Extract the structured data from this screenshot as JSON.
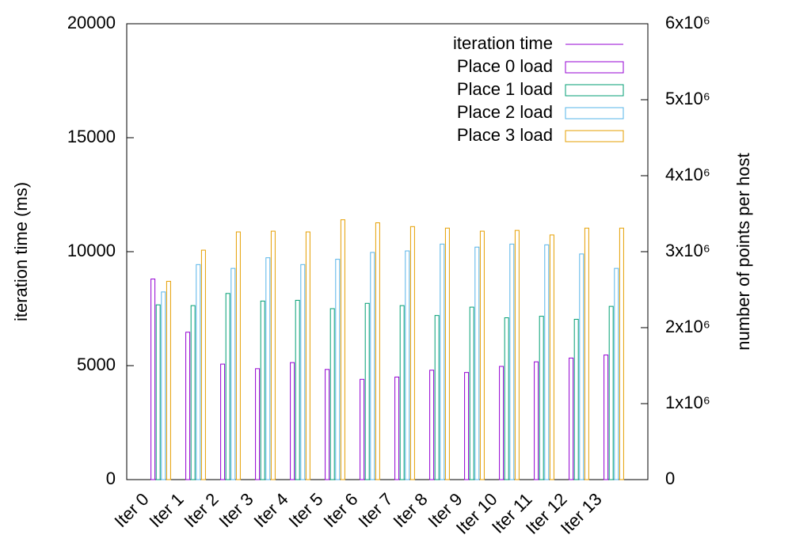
{
  "chart_data": {
    "type": "bar",
    "categories": [
      "Iter 0",
      "Iter 1",
      "Iter 2",
      "Iter 3",
      "Iter 4",
      "Iter 5",
      "Iter 6",
      "Iter 7",
      "Iter 8",
      "Iter 9",
      "Iter 10",
      "Iter 11",
      "Iter 12",
      "Iter 13"
    ],
    "y_label": "iteration time (ms)",
    "y2_label": "number of points per host",
    "ylim": [
      0,
      20000
    ],
    "yticks": [
      0,
      5000,
      10000,
      15000,
      20000
    ],
    "y2lim": [
      0,
      6000000
    ],
    "y2ticks": [
      {
        "value": 0,
        "label": "0"
      },
      {
        "value": 1000000,
        "label": "1x10⁶"
      },
      {
        "value": 2000000,
        "label": "2x10⁶"
      },
      {
        "value": 3000000,
        "label": "3x10⁶"
      },
      {
        "value": 4000000,
        "label": "4x10⁶"
      },
      {
        "value": 5000000,
        "label": "5x10⁶"
      },
      {
        "value": 6000000,
        "label": "6x10⁶"
      }
    ],
    "legend": "top-right",
    "series": [
      {
        "name": "iteration time",
        "color": "#9400d3",
        "type": "line",
        "values": [
          null,
          null,
          null,
          null,
          null,
          null,
          null,
          null,
          null,
          null,
          null,
          null,
          null,
          null
        ]
      },
      {
        "name": "Place 0 load",
        "color": "#9400d3",
        "axis": "y2",
        "values": [
          2640000,
          1940000,
          1520000,
          1460000,
          1540000,
          1450000,
          1320000,
          1350000,
          1440000,
          1410000,
          1490000,
          1550000,
          1600000,
          1640000
        ]
      },
      {
        "name": "Place 1 load",
        "color": "#009e73",
        "axis": "y2",
        "values": [
          2300000,
          2290000,
          2450000,
          2350000,
          2360000,
          2250000,
          2320000,
          2290000,
          2160000,
          2270000,
          2130000,
          2150000,
          2110000,
          2280000
        ]
      },
      {
        "name": "Place 2 load",
        "color": "#56b4e9",
        "axis": "y2",
        "values": [
          2470000,
          2830000,
          2780000,
          2920000,
          2830000,
          2900000,
          2990000,
          3010000,
          3100000,
          3060000,
          3100000,
          3090000,
          2970000,
          2780000
        ]
      },
      {
        "name": "Place 3 load",
        "color": "#e69f00",
        "axis": "y2",
        "values": [
          2610000,
          3020000,
          3260000,
          3270000,
          3260000,
          3420000,
          3380000,
          3330000,
          3310000,
          3270000,
          3280000,
          3220000,
          3310000,
          3310000
        ]
      }
    ]
  }
}
